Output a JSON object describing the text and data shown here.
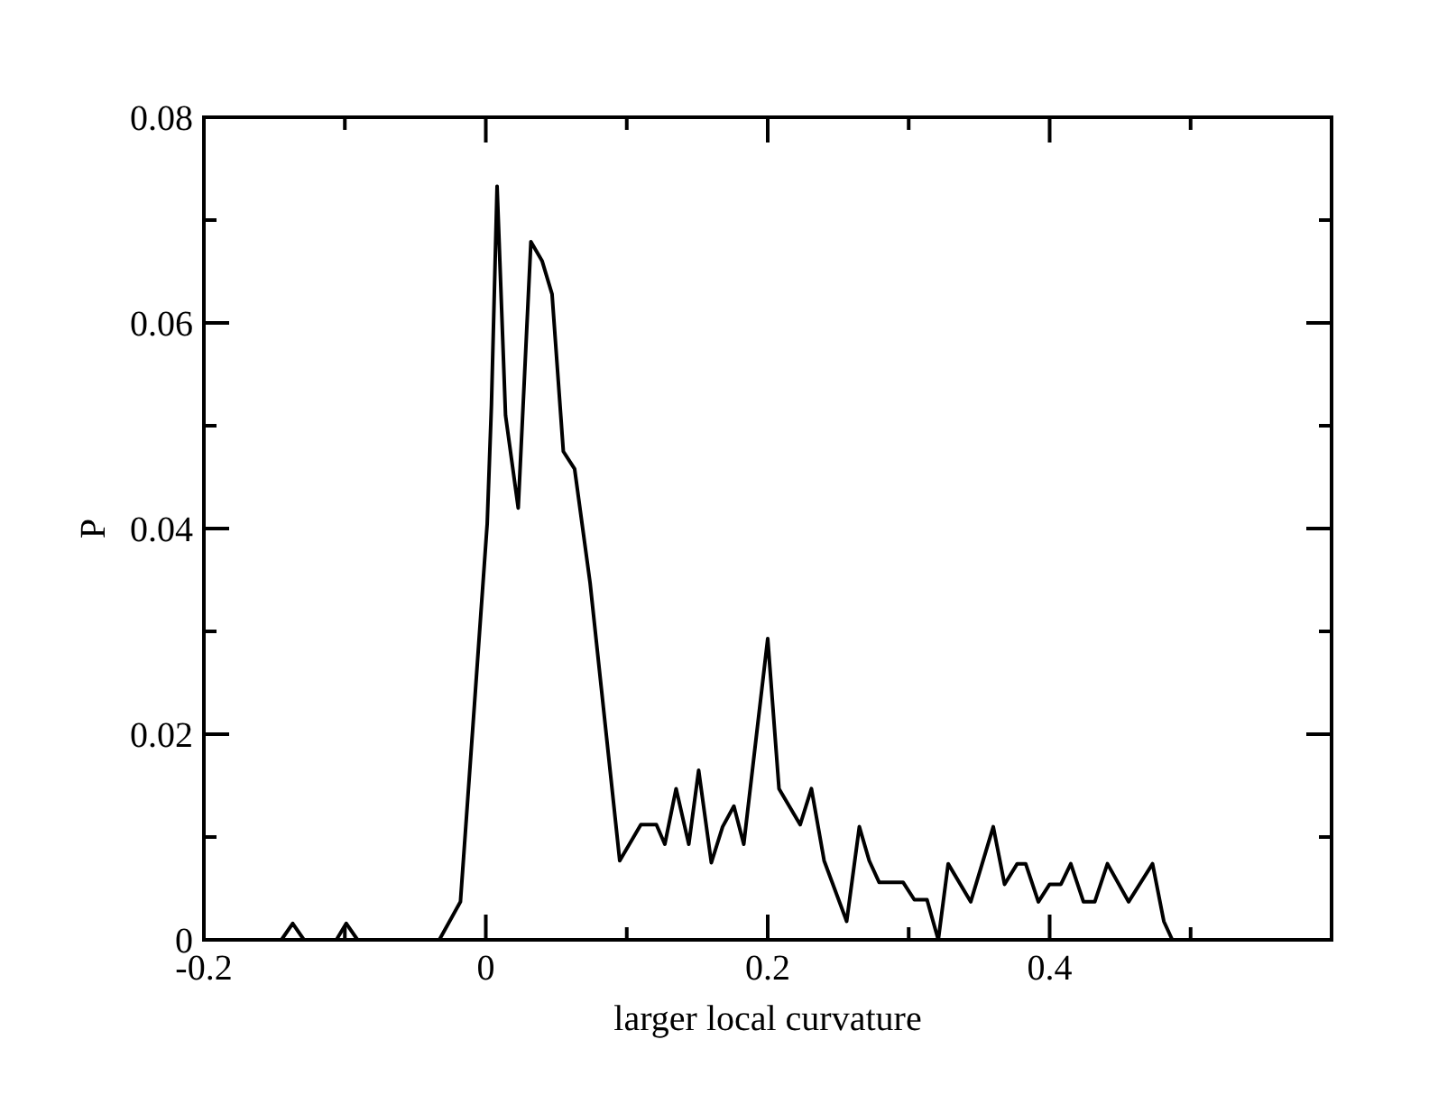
{
  "chart_data": {
    "type": "line",
    "xlabel": "larger local curvature",
    "ylabel": "P",
    "xlim": [
      -0.2,
      0.6
    ],
    "ylim": [
      0,
      0.08
    ],
    "xticks": [
      -0.2,
      {
        "value": -0.1,
        "label": null
      },
      0,
      {
        "value": 0.1,
        "label": null
      },
      0.2,
      {
        "value": 0.3,
        "label": null
      },
      0.4,
      {
        "value": 0.5,
        "label": null
      }
    ],
    "yticks": [
      0,
      {
        "value": 0.01,
        "label": null
      },
      0.02,
      {
        "value": 0.03,
        "label": null
      },
      0.04,
      {
        "value": 0.05,
        "label": null
      },
      0.06,
      {
        "value": 0.07,
        "label": null
      },
      0.08
    ],
    "grid": false,
    "marker": "none",
    "line_style": "solid",
    "series": [
      {
        "color": "#000000",
        "x": [
          -0.2,
          -0.145,
          -0.137,
          -0.129,
          -0.106,
          -0.099,
          -0.091,
          -0.033,
          -0.018,
          -0.008,
          0.001,
          0.004,
          0.008,
          0.014,
          0.023,
          0.032,
          0.04,
          0.047,
          0.055,
          0.063,
          0.074,
          0.095,
          0.11,
          0.121,
          0.127,
          0.135,
          0.144,
          0.151,
          0.16,
          0.168,
          0.176,
          0.183,
          0.2,
          0.208,
          0.223,
          0.231,
          0.24,
          0.256,
          0.265,
          0.272,
          0.279,
          0.296,
          0.304,
          0.313,
          0.321,
          0.328,
          0.344,
          0.36,
          0.368,
          0.377,
          0.383,
          0.392,
          0.4,
          0.408,
          0.415,
          0.424,
          0.432,
          0.441,
          0.456,
          0.473,
          0.481,
          0.487
        ],
        "values": [
          0,
          0,
          0.0016,
          0,
          0,
          0.0016,
          0,
          0,
          0.0037,
          0.023,
          0.0405,
          0.052,
          0.0733,
          0.051,
          0.042,
          0.0679,
          0.066,
          0.0628,
          0.0475,
          0.0458,
          0.0347,
          0.0077,
          0.0112,
          0.0112,
          0.0093,
          0.0147,
          0.0093,
          0.0165,
          0.0075,
          0.011,
          0.013,
          0.0093,
          0.0293,
          0.0147,
          0.0112,
          0.0147,
          0.0077,
          0.0018,
          0.011,
          0.0077,
          0.0056,
          0.0056,
          0.0039,
          0.0039,
          0,
          0.0074,
          0.0037,
          0.011,
          0.0054,
          0.0074,
          0.0074,
          0.0037,
          0.0054,
          0.0054,
          0.0074,
          0.0037,
          0.0037,
          0.0074,
          0.0037,
          0.0074,
          0.0018,
          0
        ]
      }
    ]
  }
}
